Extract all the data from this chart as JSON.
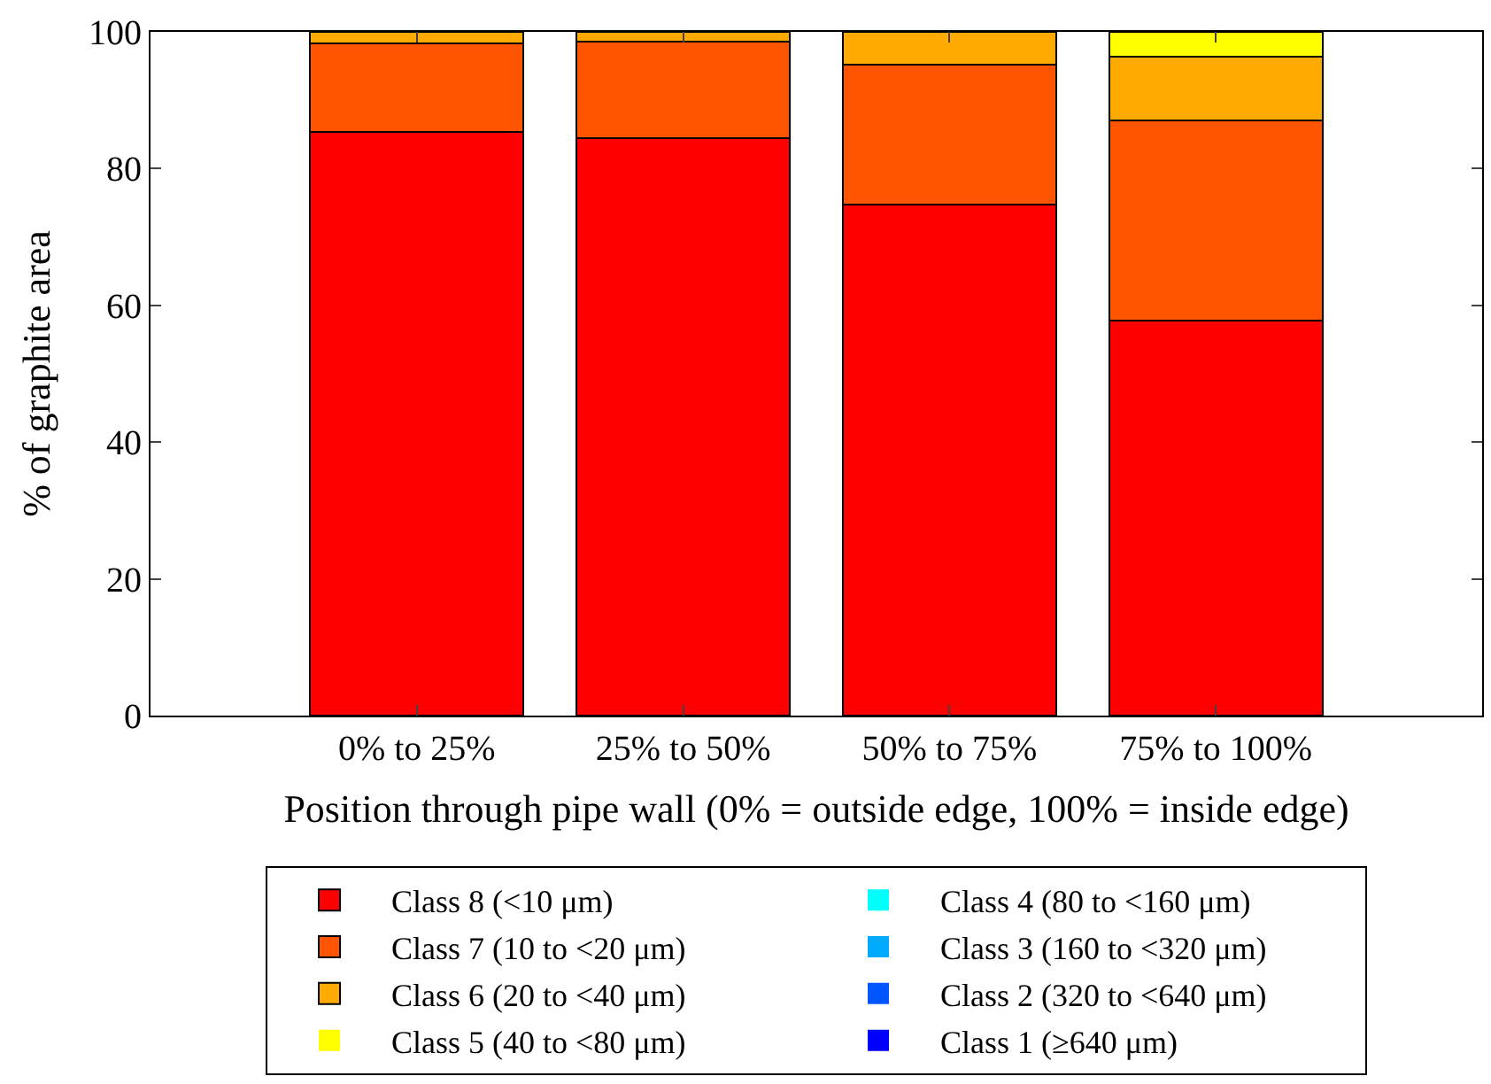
{
  "chart_data": {
    "type": "bar",
    "stacked": true,
    "xlabel": "Position through pipe wall (0% = outside edge, 100% = inside edge)",
    "ylabel": "% of graphite area",
    "categories": [
      "0% to 25%",
      "25% to 50%",
      "50% to 75%",
      "75% to 100%"
    ],
    "ylim": [
      0,
      100
    ],
    "yticks": [
      0,
      20,
      40,
      60,
      80,
      100
    ],
    "legend": "bottom",
    "series": [
      {
        "name": "Class 8 (<10 μm)",
        "color": "#ff0000",
        "values": [
          85.4,
          84.5,
          74.7,
          57.8
        ]
      },
      {
        "name": "Class 7 (10 to <20 μm)",
        "color": "#ff5500",
        "values": [
          12.9,
          14.1,
          20.5,
          29.3
        ]
      },
      {
        "name": "Class 6 (20 to <40 μm)",
        "color": "#ffaa00",
        "values": [
          1.7,
          1.4,
          4.8,
          9.3
        ]
      },
      {
        "name": "Class 5 (40 to <80 μm)",
        "color": "#ffff00",
        "values": [
          0,
          0,
          0,
          3.6
        ]
      },
      {
        "name": "Class 4 (80 to <160 μm)",
        "color": "#00ffff",
        "values": [
          0,
          0,
          0,
          0
        ]
      },
      {
        "name": "Class 3 (160 to <320 μm)",
        "color": "#00aaff",
        "values": [
          0,
          0,
          0,
          0
        ]
      },
      {
        "name": "Class 2 (320 to <640 μm)",
        "color": "#0055ff",
        "values": [
          0,
          0,
          0,
          0
        ]
      },
      {
        "name": "Class 1 (≥640 μm)",
        "color": "#0000ff",
        "values": [
          0,
          0,
          0,
          0
        ]
      }
    ]
  }
}
